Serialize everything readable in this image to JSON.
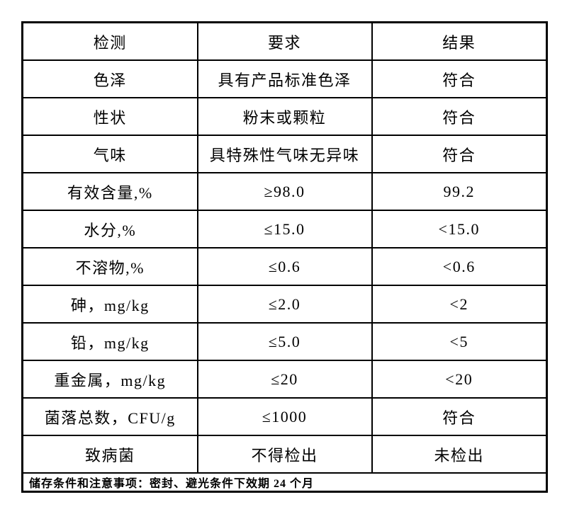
{
  "table": {
    "headers": {
      "test": "检测",
      "requirement": "要求",
      "result": "结果"
    },
    "rows": [
      {
        "name": "色泽",
        "requirement": "具有产品标准色泽",
        "result": "符合"
      },
      {
        "name": "性状",
        "requirement": "粉末或颗粒",
        "result": "符合"
      },
      {
        "name": "气味",
        "requirement": "具特殊性气味无异味",
        "result": "符合"
      },
      {
        "name": "有效含量,%",
        "requirement": "≥98.0",
        "result": "99.2"
      },
      {
        "name": "水分,%",
        "requirement": "≤15.0",
        "result": "<15.0"
      },
      {
        "name": "不溶物,%",
        "requirement": "≤0.6",
        "result": "<0.6"
      },
      {
        "name": "砷，mg/kg",
        "requirement": "≤2.0",
        "result": "<2"
      },
      {
        "name": "铅，mg/kg",
        "requirement": "≤5.0",
        "result": "<5"
      },
      {
        "name": "重金属，mg/kg",
        "requirement": "≤20",
        "result": "<20"
      },
      {
        "name": "菌落总数，CFU/g",
        "requirement": "≤1000",
        "result": "符合"
      },
      {
        "name": "致病菌",
        "requirement": "不得检出",
        "result": "未检出"
      }
    ],
    "footer": "储存条件和注意事项：密封、避光条件下效期 24 个月"
  },
  "colors": {
    "border": "#000000",
    "text": "#000000",
    "background": "#ffffff"
  }
}
